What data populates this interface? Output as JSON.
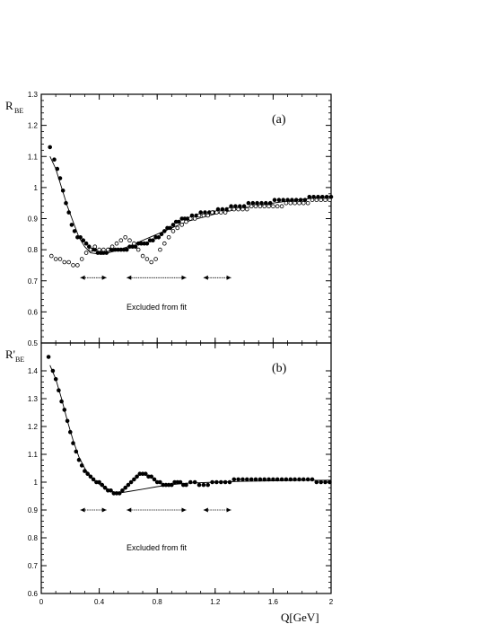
{
  "chart_data": [
    {
      "type": "scatter",
      "panel_label": "(a)",
      "ylabel": "R",
      "ylabel_sub": "BE",
      "xlabel": "Q[GeV]",
      "xlim": [
        0,
        2
      ],
      "ylim": [
        0.5,
        1.3
      ],
      "x_ticks": [
        "0.4",
        "0.8",
        "1.2",
        "1.6",
        "2"
      ],
      "x_tick_values": [
        0.4,
        0.8,
        1.2,
        1.6,
        2.0
      ],
      "y_ticks": [
        "0.5",
        "0.6",
        "0.7",
        "0.8",
        "0.9",
        "1",
        "1.1",
        "1.2",
        "1.3"
      ],
      "y_tick_values": [
        0.5,
        0.6,
        0.7,
        0.8,
        0.9,
        1.0,
        1.1,
        1.2,
        1.3
      ],
      "annotation": "Excluded from fit",
      "excluded_ranges": [
        [
          0.27,
          0.45
        ],
        [
          0.59,
          1.0
        ],
        [
          1.12,
          1.31
        ]
      ],
      "excluded_y": 0.71,
      "series": [
        {
          "marker": "filled",
          "x": [
            0.06,
            0.09,
            0.11,
            0.13,
            0.15,
            0.17,
            0.19,
            0.21,
            0.23,
            0.25,
            0.27,
            0.29,
            0.31,
            0.33,
            0.35,
            0.37,
            0.39,
            0.41,
            0.43,
            0.45,
            0.47,
            0.49,
            0.51,
            0.53,
            0.55,
            0.57,
            0.59,
            0.61,
            0.63,
            0.65,
            0.67,
            0.69,
            0.71,
            0.73,
            0.75,
            0.77,
            0.79,
            0.81,
            0.83,
            0.85,
            0.87,
            0.89,
            0.91,
            0.93,
            0.95,
            0.97,
            0.99,
            1.01,
            1.04,
            1.07,
            1.1,
            1.13,
            1.16,
            1.19,
            1.22,
            1.25,
            1.28,
            1.31,
            1.34,
            1.37,
            1.4,
            1.43,
            1.46,
            1.49,
            1.52,
            1.55,
            1.58,
            1.61,
            1.64,
            1.67,
            1.7,
            1.73,
            1.76,
            1.79,
            1.82,
            1.85,
            1.88,
            1.91,
            1.94,
            1.97,
            2.0
          ],
          "y": [
            1.13,
            1.09,
            1.06,
            1.03,
            0.99,
            0.95,
            0.92,
            0.88,
            0.86,
            0.84,
            0.84,
            0.83,
            0.82,
            0.81,
            0.8,
            0.8,
            0.79,
            0.79,
            0.79,
            0.79,
            0.8,
            0.8,
            0.8,
            0.8,
            0.8,
            0.8,
            0.8,
            0.81,
            0.81,
            0.81,
            0.82,
            0.82,
            0.82,
            0.82,
            0.83,
            0.83,
            0.84,
            0.84,
            0.85,
            0.86,
            0.87,
            0.87,
            0.88,
            0.89,
            0.89,
            0.9,
            0.9,
            0.9,
            0.91,
            0.91,
            0.92,
            0.92,
            0.92,
            0.92,
            0.93,
            0.93,
            0.93,
            0.94,
            0.94,
            0.94,
            0.94,
            0.95,
            0.95,
            0.95,
            0.95,
            0.95,
            0.95,
            0.96,
            0.96,
            0.96,
            0.96,
            0.96,
            0.96,
            0.96,
            0.96,
            0.97,
            0.97,
            0.97,
            0.97,
            0.97,
            0.97
          ]
        },
        {
          "marker": "open",
          "x": [
            0.07,
            0.1,
            0.13,
            0.16,
            0.19,
            0.22,
            0.25,
            0.28,
            0.31,
            0.34,
            0.37,
            0.4,
            0.43,
            0.46,
            0.49,
            0.52,
            0.55,
            0.58,
            0.61,
            0.64,
            0.67,
            0.7,
            0.73,
            0.76,
            0.79,
            0.82,
            0.85,
            0.88,
            0.91,
            0.94,
            0.97,
            1.0,
            1.03,
            1.06,
            1.09,
            1.12,
            1.15,
            1.18,
            1.21,
            1.24,
            1.27,
            1.3,
            1.33,
            1.36,
            1.39,
            1.42,
            1.45,
            1.48,
            1.51,
            1.54,
            1.57,
            1.6,
            1.63,
            1.66,
            1.69,
            1.72,
            1.75,
            1.78,
            1.81,
            1.84,
            1.87,
            1.9,
            1.93,
            1.96,
            1.99
          ],
          "y": [
            0.78,
            0.77,
            0.77,
            0.76,
            0.76,
            0.75,
            0.75,
            0.77,
            0.79,
            0.8,
            0.81,
            0.8,
            0.8,
            0.8,
            0.81,
            0.82,
            0.83,
            0.84,
            0.83,
            0.82,
            0.8,
            0.78,
            0.77,
            0.76,
            0.77,
            0.8,
            0.82,
            0.84,
            0.86,
            0.87,
            0.88,
            0.89,
            0.9,
            0.9,
            0.91,
            0.91,
            0.91,
            0.92,
            0.92,
            0.92,
            0.92,
            0.93,
            0.93,
            0.93,
            0.93,
            0.93,
            0.94,
            0.94,
            0.94,
            0.94,
            0.94,
            0.94,
            0.94,
            0.94,
            0.95,
            0.95,
            0.95,
            0.95,
            0.95,
            0.95,
            0.96,
            0.96,
            0.96,
            0.96,
            0.96
          ]
        }
      ],
      "fit_curve": {
        "x": [
          0.06,
          0.1,
          0.14,
          0.18,
          0.22,
          0.26,
          0.3,
          0.34,
          0.38,
          0.42,
          0.5,
          0.6,
          0.7,
          0.8,
          0.9,
          1.0,
          1.2,
          1.4,
          1.6,
          1.8,
          2.0
        ],
        "y": [
          1.1,
          1.06,
          1.0,
          0.94,
          0.89,
          0.84,
          0.81,
          0.79,
          0.787,
          0.785,
          0.795,
          0.81,
          0.83,
          0.85,
          0.87,
          0.89,
          0.915,
          0.935,
          0.95,
          0.962,
          0.972
        ]
      }
    },
    {
      "type": "scatter",
      "panel_label": "(b)",
      "ylabel": "R'",
      "ylabel_sub": "BE",
      "xlabel": "Q[GeV]",
      "xlim": [
        0,
        2
      ],
      "ylim": [
        0.6,
        1.5
      ],
      "x_ticks": [
        "0",
        "0.4",
        "0.8",
        "1.2",
        "1.6",
        "2"
      ],
      "x_tick_values": [
        0,
        0.4,
        0.8,
        1.2,
        1.6,
        2.0
      ],
      "y_ticks": [
        "0.6",
        "0.7",
        "0.8",
        "0.9",
        "1",
        "1.1",
        "1.2",
        "1.3",
        "1.4"
      ],
      "y_tick_values": [
        0.6,
        0.7,
        0.8,
        0.9,
        1.0,
        1.1,
        1.2,
        1.3,
        1.4
      ],
      "annotation": "Excluded from fit",
      "excluded_ranges": [
        [
          0.27,
          0.45
        ],
        [
          0.59,
          1.0
        ],
        [
          1.12,
          1.31
        ]
      ],
      "excluded_y": 0.9,
      "series": [
        {
          "marker": "filled",
          "x": [
            0.05,
            0.08,
            0.1,
            0.12,
            0.14,
            0.16,
            0.18,
            0.2,
            0.22,
            0.24,
            0.26,
            0.28,
            0.3,
            0.32,
            0.34,
            0.36,
            0.38,
            0.4,
            0.42,
            0.44,
            0.46,
            0.48,
            0.5,
            0.52,
            0.54,
            0.56,
            0.58,
            0.6,
            0.62,
            0.64,
            0.66,
            0.68,
            0.7,
            0.72,
            0.74,
            0.76,
            0.78,
            0.8,
            0.82,
            0.84,
            0.86,
            0.88,
            0.9,
            0.92,
            0.94,
            0.96,
            0.98,
            1.0,
            1.03,
            1.06,
            1.09,
            1.12,
            1.15,
            1.18,
            1.21,
            1.24,
            1.27,
            1.3,
            1.33,
            1.36,
            1.39,
            1.42,
            1.45,
            1.48,
            1.51,
            1.54,
            1.57,
            1.6,
            1.63,
            1.66,
            1.69,
            1.72,
            1.75,
            1.78,
            1.81,
            1.84,
            1.87,
            1.9,
            1.93,
            1.96,
            1.99
          ],
          "y": [
            1.45,
            1.4,
            1.37,
            1.33,
            1.29,
            1.26,
            1.22,
            1.18,
            1.14,
            1.11,
            1.08,
            1.06,
            1.04,
            1.03,
            1.02,
            1.01,
            1.0,
            1.0,
            0.99,
            0.98,
            0.97,
            0.97,
            0.96,
            0.96,
            0.96,
            0.97,
            0.98,
            0.99,
            1.0,
            1.01,
            1.02,
            1.03,
            1.03,
            1.03,
            1.02,
            1.02,
            1.01,
            1.0,
            1.0,
            0.99,
            0.99,
            0.99,
            0.99,
            1.0,
            1.0,
            1.0,
            0.99,
            0.99,
            1.0,
            1.0,
            0.99,
            0.99,
            0.99,
            1.0,
            1.0,
            1.0,
            1.0,
            1.0,
            1.01,
            1.01,
            1.01,
            1.01,
            1.01,
            1.01,
            1.01,
            1.01,
            1.01,
            1.01,
            1.01,
            1.01,
            1.01,
            1.01,
            1.01,
            1.01,
            1.01,
            1.01,
            1.01,
            1.0,
            1.0,
            1.0,
            1.0
          ]
        }
      ],
      "fit_curve": {
        "x": [
          0.06,
          0.1,
          0.14,
          0.18,
          0.22,
          0.26,
          0.3,
          0.34,
          0.38,
          0.42,
          0.46,
          0.5,
          0.55,
          0.6,
          0.7,
          0.8,
          0.9,
          1.0,
          1.2,
          1.4,
          1.6,
          1.8,
          2.0
        ],
        "y": [
          1.42,
          1.37,
          1.3,
          1.22,
          1.15,
          1.09,
          1.05,
          1.02,
          1.0,
          0.985,
          0.975,
          0.965,
          0.962,
          0.966,
          0.975,
          0.984,
          0.991,
          0.996,
          1.0,
          1.003,
          1.005,
          1.006,
          1.007
        ]
      }
    }
  ]
}
